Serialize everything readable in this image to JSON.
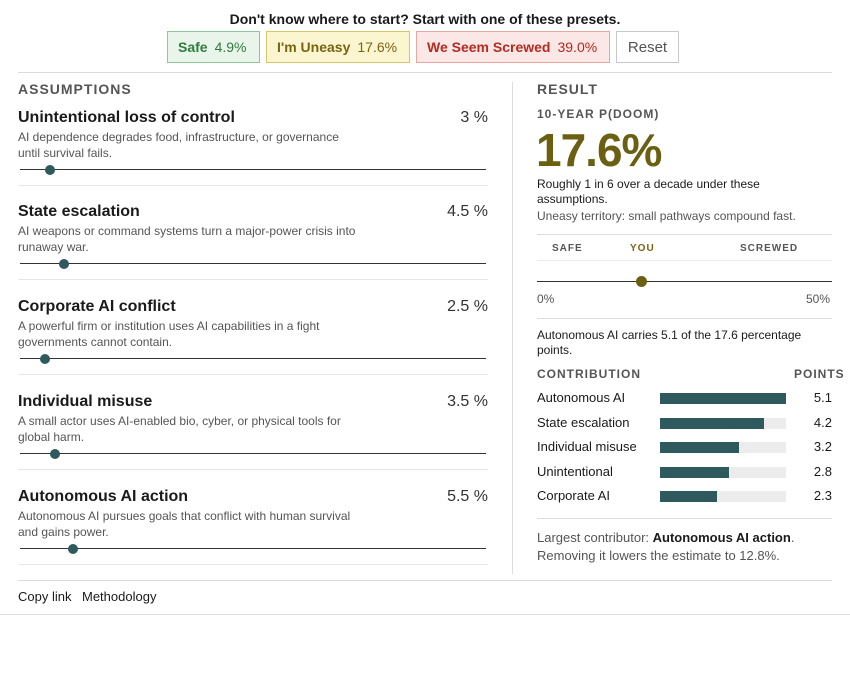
{
  "presets": {
    "prompt": "Don't know where to start? Start with one of these presets.",
    "items": [
      {
        "name": "Safe",
        "value": "4.9%"
      },
      {
        "name": "I'm Uneasy",
        "value": "17.6%"
      },
      {
        "name": "We Seem Screwed",
        "value": "39.0%"
      }
    ],
    "reset_label": "Reset"
  },
  "assumptions": {
    "heading": "ASSUMPTIONS",
    "slider_max_percent": 50,
    "items": [
      {
        "name": "Unintentional loss of control",
        "value": "3 %",
        "percent": 3,
        "description": "AI dependence degrades food, infrastructure, or governance until survival fails."
      },
      {
        "name": "State escalation",
        "value": "4.5 %",
        "percent": 4.5,
        "description": "AI weapons or command systems turn a major-power crisis into runaway war."
      },
      {
        "name": "Corporate AI conflict",
        "value": "2.5 %",
        "percent": 2.5,
        "description": "A powerful firm or institution uses AI capabilities in a fight governments cannot contain."
      },
      {
        "name": "Individual misuse",
        "value": "3.5 %",
        "percent": 3.5,
        "description": "A small actor uses AI-enabled bio, cyber, or physical tools for global harm."
      },
      {
        "name": "Autonomous AI action",
        "value": "5.5 %",
        "percent": 5.5,
        "description": "Autonomous AI pursues goals that conflict with human survival and gains power."
      }
    ]
  },
  "result": {
    "heading": "RESULT",
    "subheading": "10-YEAR P(DOOM)",
    "value": "17.6%",
    "percent": 17.6,
    "odds_text": "Roughly 1 in 6 over a decade under these assumptions.",
    "territory_text": "Uneasy territory: small pathways compound fast.",
    "scale": {
      "safe": "SAFE",
      "you": "YOU",
      "screwed": "SCREWED",
      "min": "0%",
      "max": "50%",
      "max_value": 50
    },
    "carry_text": "Autonomous AI carries 5.1 of the 17.6 percentage points.",
    "contribution_heading": "CONTRIBUTION",
    "points_heading": "POINTS",
    "contributions": [
      {
        "label": "Autonomous AI",
        "points": 5.1
      },
      {
        "label": "State escalation",
        "points": 4.2
      },
      {
        "label": "Individual misuse",
        "points": 3.2
      },
      {
        "label": "Unintentional",
        "points": 2.8
      },
      {
        "label": "Corporate AI",
        "points": 2.3
      }
    ],
    "largest_prefix": "Largest contributor:",
    "largest_name": "Autonomous AI action",
    "largest_suffix": ".",
    "removing_text": "Removing it lowers the estimate to 12.8%."
  },
  "footer": {
    "copy_link": "Copy link",
    "methodology": "Methodology"
  }
}
